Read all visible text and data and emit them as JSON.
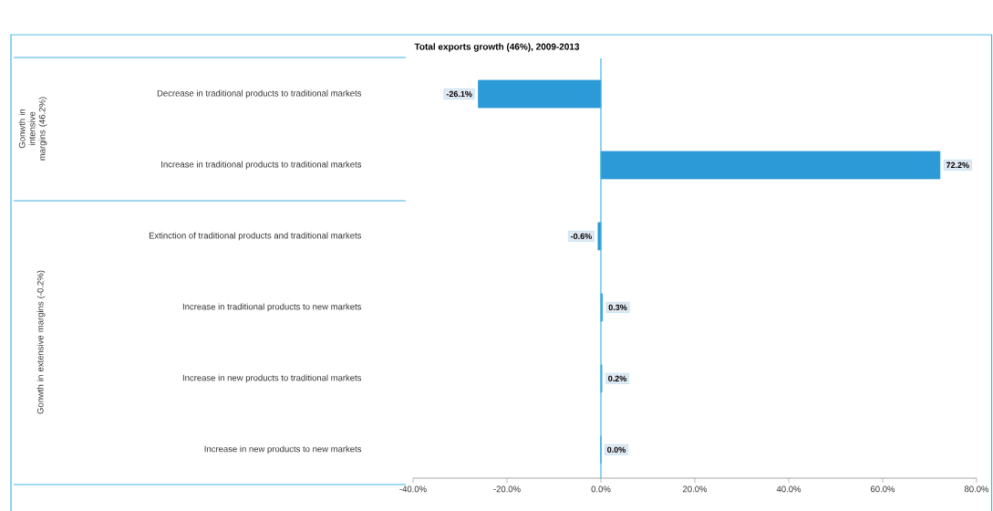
{
  "chart_data": {
    "type": "bar",
    "orientation": "horizontal",
    "title": "Total exports growth (46%), 2009-2013",
    "categories": [
      "Decrease in traditional products to traditional markets",
      "Increase in traditional products to traditional markets",
      "Extinction of traditional products and traditional markets",
      "Increase in traditional products to new markets",
      "Increase in new products to traditional markets",
      "Increase in new products to new markets"
    ],
    "values": [
      -26.1,
      72.2,
      -0.6,
      0.3,
      0.2,
      0.0
    ],
    "value_labels": [
      "-26.1%",
      "72.2%",
      "-0.6%",
      "0.3%",
      "0.2%",
      "0.0%"
    ],
    "color": "#2b9ad6",
    "ref_lines": [
      {
        "axis": "x",
        "value": 0,
        "color": "#3fb4e4"
      }
    ],
    "xlim": [
      -40,
      80
    ],
    "xticks": [
      {
        "value": -40,
        "label": "-40.0%"
      },
      {
        "value": -20,
        "label": "-20.0%"
      },
      {
        "value": 0,
        "label": "0.0%"
      },
      {
        "value": 20,
        "label": "20.0%"
      },
      {
        "value": 40,
        "label": "40.0%"
      },
      {
        "value": 60,
        "label": "60.0%"
      },
      {
        "value": 80,
        "label": "80.0%"
      }
    ],
    "annotations": [
      "Gonwth in intensive margins (46.2%)",
      "Gonwth in extensive margins (-0.2%)"
    ]
  }
}
